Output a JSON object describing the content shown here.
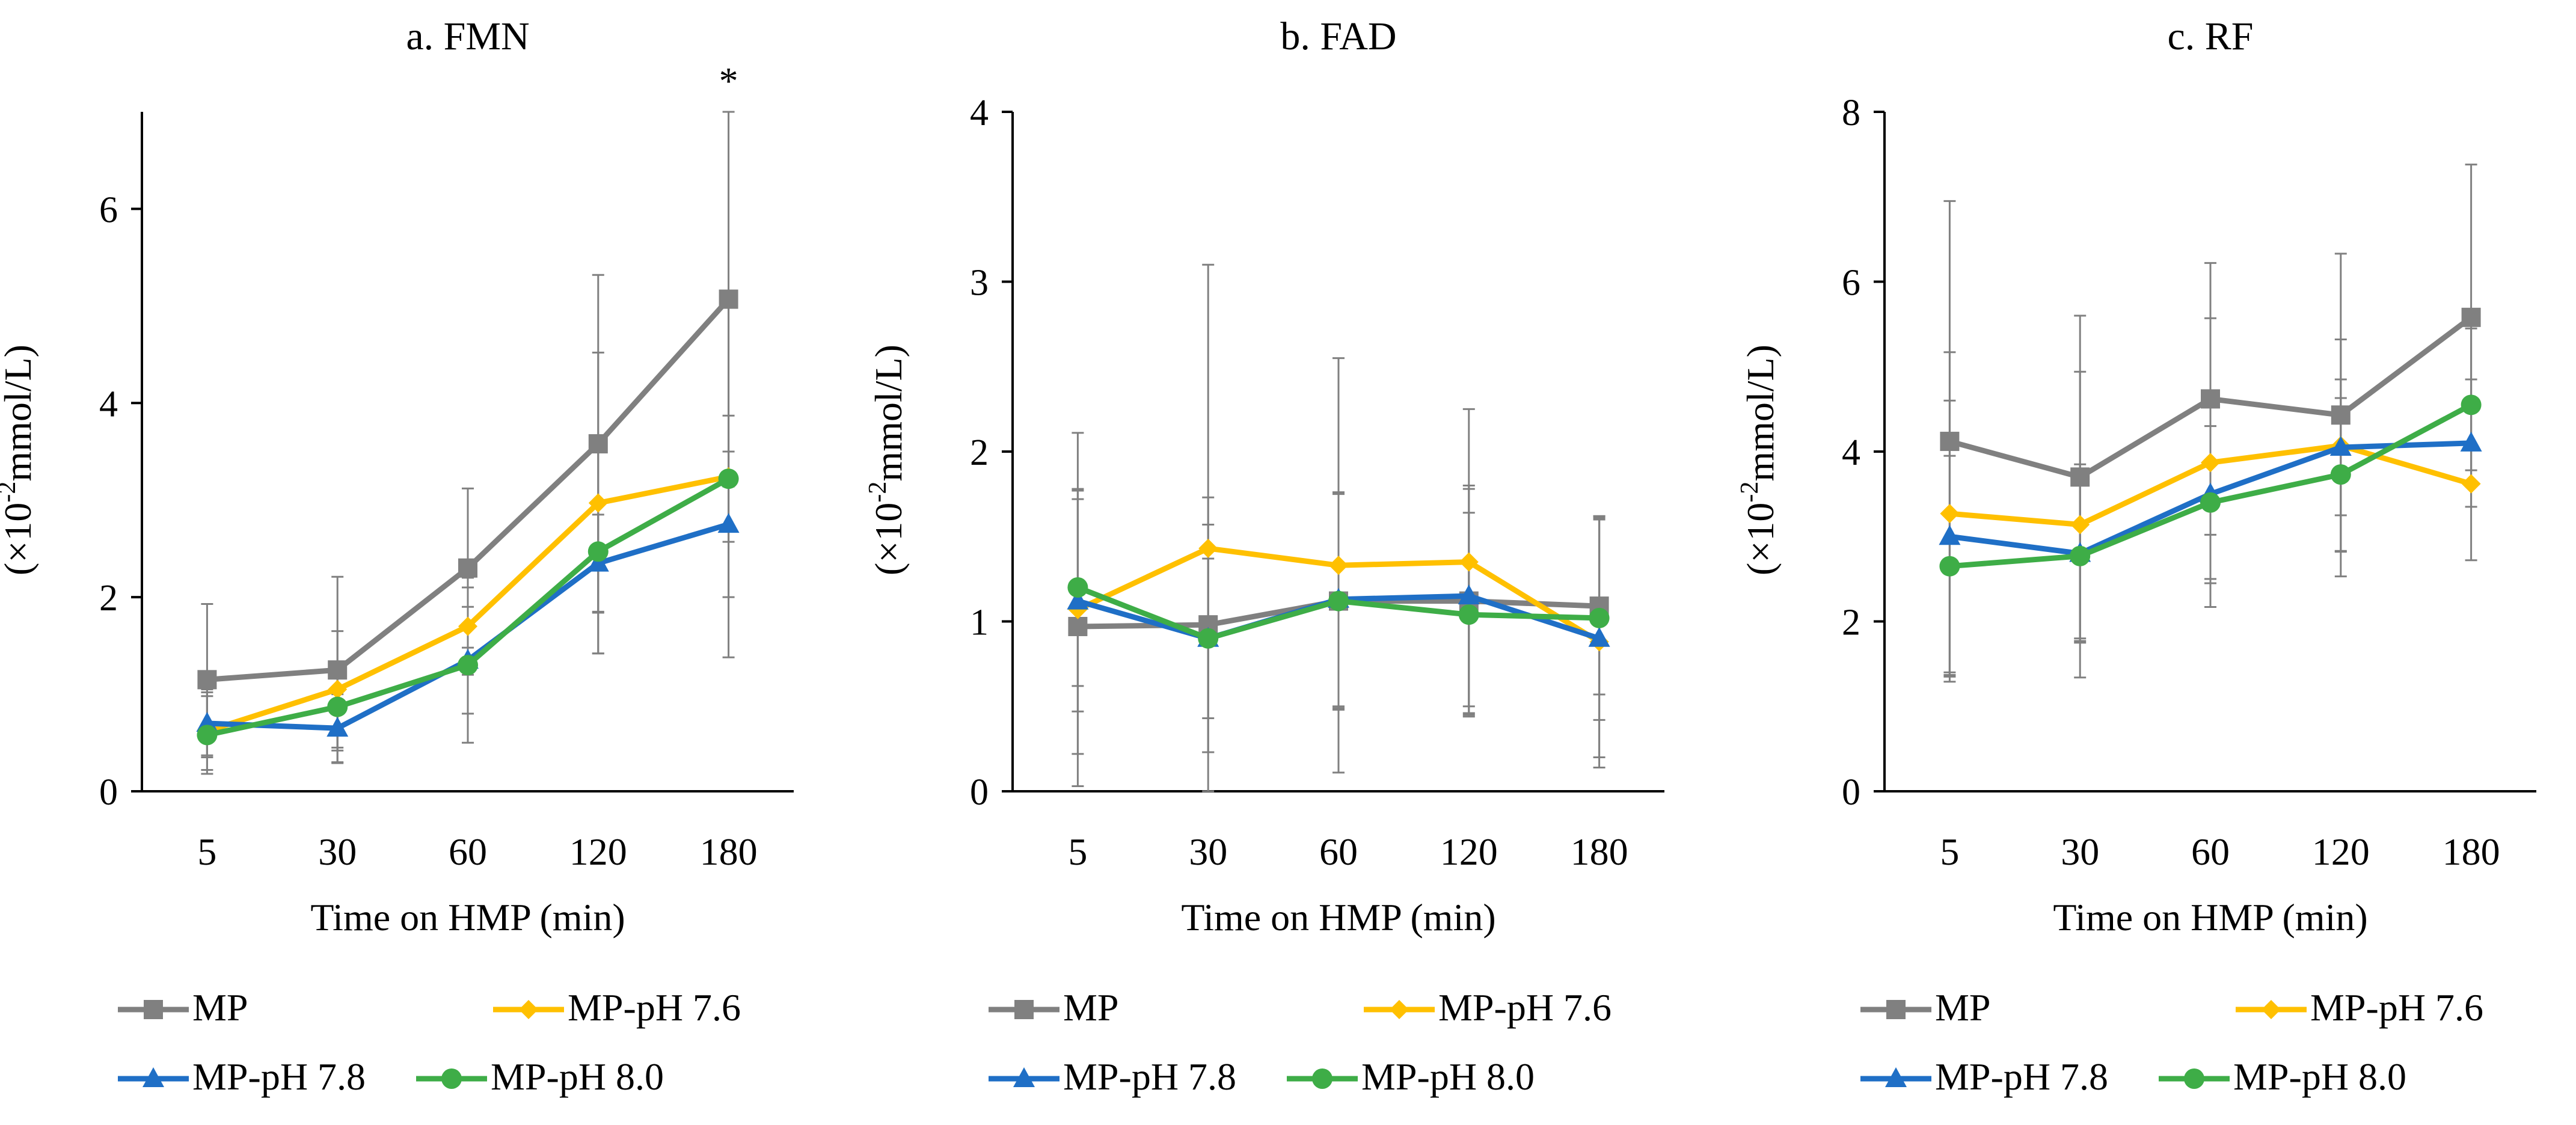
{
  "chart_data": [
    {
      "type": "line",
      "title": "a. FMN",
      "xlabel": "Time on HMP (min)",
      "ylabel_prefix": "(×10",
      "ylabel_sup": "-2",
      "ylabel_suffix": "mmol/L)",
      "categories": [
        "5",
        "30",
        "60",
        "120",
        "180"
      ],
      "ylim": [
        0,
        7
      ],
      "yticks": [
        0,
        2,
        4,
        6
      ],
      "annotation": "*",
      "annotation_index": 4,
      "series": [
        {
          "name": "MP",
          "color": "#808080",
          "marker": "square",
          "values": [
            1.15,
            1.25,
            2.3,
            3.58,
            5.07
          ],
          "err": [
            0.78,
            0.96,
            0.82,
            1.74,
            1.93
          ]
        },
        {
          "name": "MP-pH 7.6",
          "color": "#FFC000",
          "marker": "diamond",
          "values": [
            0.62,
            1.05,
            1.7,
            2.97,
            3.24
          ],
          "err": [
            0.4,
            0.6,
            0.5,
            1.55,
            1.86
          ]
        },
        {
          "name": "MP-pH 7.8",
          "color": "#1F6FC6",
          "marker": "triangle",
          "values": [
            0.7,
            0.65,
            1.35,
            2.35,
            2.75
          ],
          "err": [
            0.35,
            0.35,
            0.55,
            0.5,
            0.75
          ]
        },
        {
          "name": "MP-pH 8.0",
          "color": "#3EAD47",
          "marker": "circle",
          "values": [
            0.58,
            0.87,
            1.3,
            2.47,
            3.22
          ],
          "err": [
            0.4,
            0.45,
            0.8,
            1.05,
            0.65
          ]
        }
      ]
    },
    {
      "type": "line",
      "title": "b. FAD",
      "xlabel": "Time on HMP (min)",
      "ylabel_prefix": "(×10",
      "ylabel_sup": "-2",
      "ylabel_suffix": "mmol/L)",
      "categories": [
        "5",
        "30",
        "60",
        "120",
        "180"
      ],
      "ylim": [
        0,
        4
      ],
      "yticks": [
        0,
        1,
        2,
        3,
        4
      ],
      "series": [
        {
          "name": "MP",
          "color": "#808080",
          "marker": "square",
          "values": [
            0.97,
            0.98,
            1.12,
            1.12,
            1.09
          ],
          "err": [
            0.75,
            0.75,
            0.63,
            0.66,
            0.52
          ]
        },
        {
          "name": "MP-pH 7.6",
          "color": "#FFC000",
          "marker": "diamond",
          "values": [
            1.07,
            1.43,
            1.33,
            1.35,
            0.88
          ],
          "err": [
            1.04,
            1.67,
            1.22,
            0.9,
            0.74
          ]
        },
        {
          "name": "MP-pH 7.8",
          "color": "#1F6FC6",
          "marker": "triangle",
          "values": [
            1.12,
            0.9,
            1.13,
            1.15,
            0.9
          ],
          "err": [
            0.65,
            0.47,
            0.63,
            0.65,
            0.7
          ]
        },
        {
          "name": "MP-pH 8.0",
          "color": "#3EAD47",
          "marker": "circle",
          "values": [
            1.2,
            0.9,
            1.12,
            1.04,
            1.02
          ],
          "err": [
            0.58,
            0.67,
            0.64,
            0.6,
            0.6
          ]
        }
      ]
    },
    {
      "type": "line",
      "title": "c. RF",
      "xlabel": "Time on HMP (min)",
      "ylabel_prefix": "(×10",
      "ylabel_sup": "-2",
      "ylabel_suffix": "mmol/L)",
      "categories": [
        "5",
        "30",
        "60",
        "120",
        "180"
      ],
      "ylim": [
        0,
        8
      ],
      "yticks": [
        0,
        2,
        4,
        6,
        8
      ],
      "series": [
        {
          "name": "MP",
          "color": "#808080",
          "marker": "square",
          "values": [
            4.12,
            3.7,
            4.62,
            4.43,
            5.58
          ],
          "err": [
            2.83,
            1.9,
            1.6,
            1.9,
            1.8
          ]
        },
        {
          "name": "MP-pH 7.6",
          "color": "#FFC000",
          "marker": "diamond",
          "values": [
            3.27,
            3.14,
            3.87,
            4.07,
            3.62
          ],
          "err": [
            1.9,
            1.8,
            1.7,
            1.25,
            0.9
          ]
        },
        {
          "name": "MP-pH 7.8",
          "color": "#1F6FC6",
          "marker": "triangle",
          "values": [
            3.0,
            2.8,
            3.5,
            4.05,
            4.1
          ],
          "err": [
            1.6,
            1.05,
            1.05,
            0.8,
            0.75
          ]
        },
        {
          "name": "MP-pH 8.0",
          "color": "#3EAD47",
          "marker": "circle",
          "values": [
            2.65,
            2.77,
            3.4,
            3.73,
            4.55
          ],
          "err": [
            1.3,
            1.0,
            0.9,
            0.9,
            0.9
          ]
        }
      ]
    }
  ]
}
